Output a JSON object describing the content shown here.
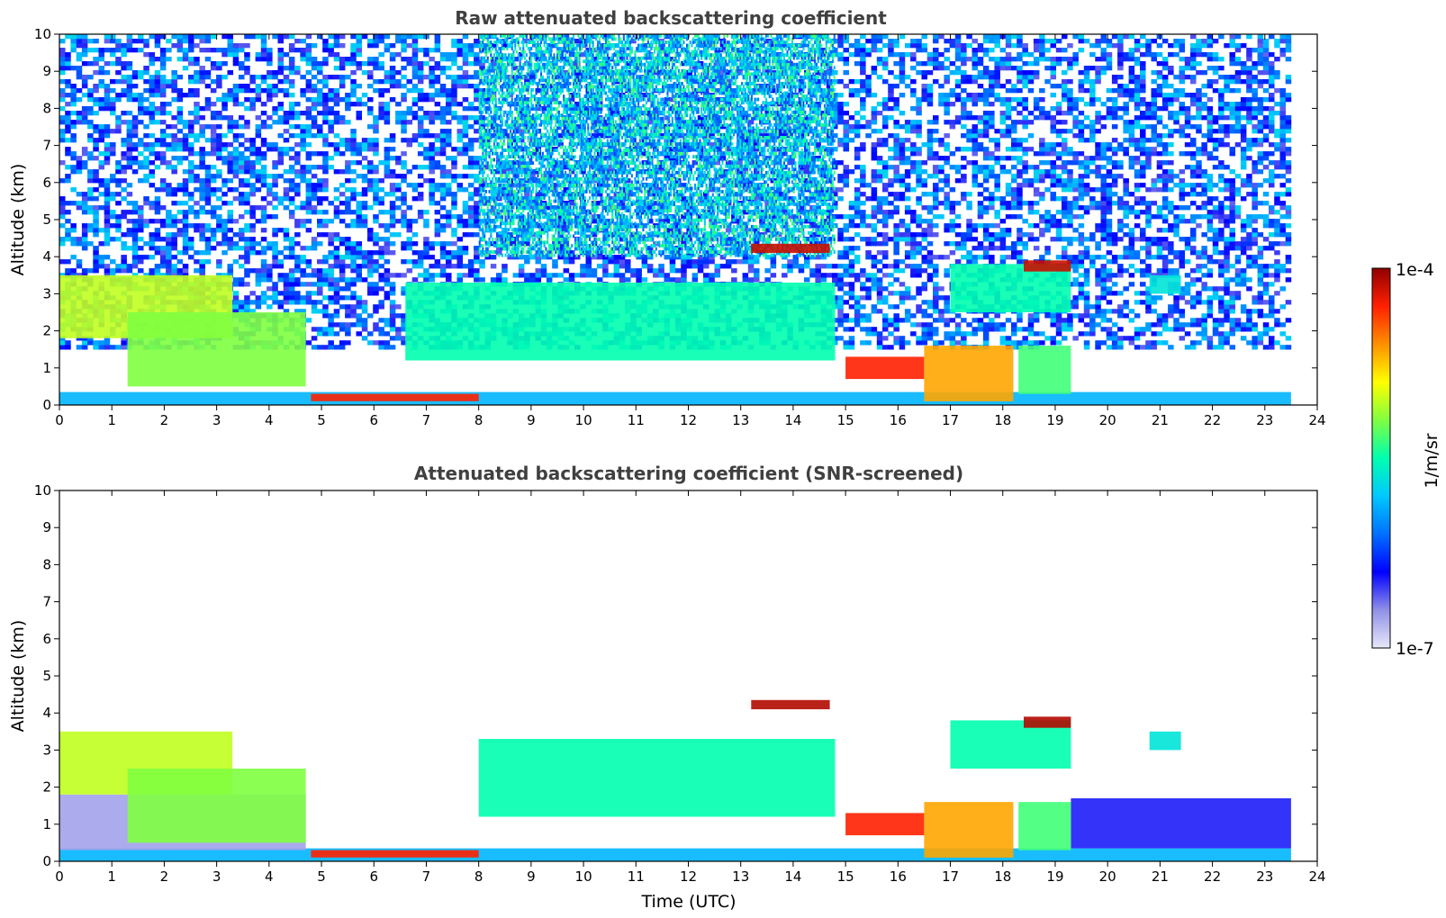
{
  "colors": {
    "colormap": [
      "#e8e8f8",
      "#9090e8",
      "#0000ff",
      "#0070ff",
      "#00c8ff",
      "#00ffb0",
      "#80ff40",
      "#ffff00",
      "#ff9000",
      "#ff2000",
      "#900000"
    ],
    "background": "#ffffff",
    "title_text": "#404040"
  },
  "chart_data": [
    {
      "type": "heatmap",
      "title": "Raw attenuated backscattering coefficient",
      "xlabel": "",
      "ylabel": "Altitude (km)",
      "xlim": [
        0,
        24
      ],
      "ylim": [
        0,
        10
      ],
      "xticks": [
        0,
        1,
        2,
        3,
        4,
        5,
        6,
        7,
        8,
        9,
        10,
        11,
        12,
        13,
        14,
        15,
        16,
        17,
        18,
        19,
        20,
        21,
        22,
        23,
        24
      ],
      "yticks": [
        0,
        1,
        2,
        3,
        4,
        5,
        6,
        7,
        8,
        9,
        10
      ],
      "data_extent_x": [
        0,
        23.5
      ],
      "features": [
        {
          "kind": "noise",
          "x": [
            0,
            23.5
          ],
          "y": [
            1.5,
            10
          ],
          "level": 0.28
        },
        {
          "kind": "noise",
          "x": [
            8,
            14.8
          ],
          "y": [
            4,
            10
          ],
          "level": 0.42
        },
        {
          "kind": "layer",
          "x": [
            0,
            23.5
          ],
          "y": [
            0,
            0.35
          ],
          "level": 0.38
        },
        {
          "kind": "layer",
          "x": [
            4.8,
            8
          ],
          "y": [
            0.1,
            0.3
          ],
          "level": 0.9
        },
        {
          "kind": "layer",
          "x": [
            0,
            3.3
          ],
          "y": [
            1.8,
            3.5
          ],
          "level": 0.65
        },
        {
          "kind": "layer",
          "x": [
            1.3,
            4.7
          ],
          "y": [
            0.5,
            2.5
          ],
          "level": 0.6
        },
        {
          "kind": "layer",
          "x": [
            6.6,
            14.8
          ],
          "y": [
            1.2,
            3.3
          ],
          "level": 0.5
        },
        {
          "kind": "layer",
          "x": [
            13.2,
            14.7
          ],
          "y": [
            4.1,
            4.35
          ],
          "level": 0.95
        },
        {
          "kind": "layer",
          "x": [
            15,
            16.5
          ],
          "y": [
            0.7,
            1.3
          ],
          "level": 0.9
        },
        {
          "kind": "layer",
          "x": [
            16.5,
            18.2
          ],
          "y": [
            0.1,
            1.6
          ],
          "level": 0.78
        },
        {
          "kind": "layer",
          "x": [
            18.3,
            19.3
          ],
          "y": [
            0.3,
            1.6
          ],
          "level": 0.55
        },
        {
          "kind": "layer",
          "x": [
            17,
            19.3
          ],
          "y": [
            2.5,
            3.8
          ],
          "level": 0.5
        },
        {
          "kind": "layer",
          "x": [
            18.4,
            19.3
          ],
          "y": [
            3.6,
            3.9
          ],
          "level": 0.95
        },
        {
          "kind": "layer",
          "x": [
            20.8,
            21.4
          ],
          "y": [
            3,
            3.5
          ],
          "level": 0.45
        }
      ]
    },
    {
      "type": "heatmap",
      "title": "Attenuated backscattering coefficient (SNR-screened)",
      "xlabel": "Time (UTC)",
      "ylabel": "Altitude (km)",
      "xlim": [
        0,
        24
      ],
      "ylim": [
        0,
        10
      ],
      "xticks": [
        0,
        1,
        2,
        3,
        4,
        5,
        6,
        7,
        8,
        9,
        10,
        11,
        12,
        13,
        14,
        15,
        16,
        17,
        18,
        19,
        20,
        21,
        22,
        23,
        24
      ],
      "yticks": [
        0,
        1,
        2,
        3,
        4,
        5,
        6,
        7,
        8,
        9,
        10
      ],
      "data_extent_x": [
        0,
        23.5
      ],
      "features": [
        {
          "kind": "layer",
          "x": [
            0,
            23.5
          ],
          "y": [
            0,
            0.35
          ],
          "level": 0.38
        },
        {
          "kind": "layer",
          "x": [
            0,
            4.7
          ],
          "y": [
            0.3,
            1.8
          ],
          "level": 0.08
        },
        {
          "kind": "layer",
          "x": [
            19.3,
            23.5
          ],
          "y": [
            0.35,
            1.7
          ],
          "level": 0.18
        },
        {
          "kind": "layer",
          "x": [
            4.8,
            8
          ],
          "y": [
            0.1,
            0.3
          ],
          "level": 0.9
        },
        {
          "kind": "layer",
          "x": [
            0,
            3.3
          ],
          "y": [
            1.8,
            3.5
          ],
          "level": 0.65
        },
        {
          "kind": "layer",
          "x": [
            1.3,
            4.7
          ],
          "y": [
            0.5,
            2.5
          ],
          "level": 0.6
        },
        {
          "kind": "layer",
          "x": [
            8,
            14.8
          ],
          "y": [
            1.2,
            3.3
          ],
          "level": 0.5
        },
        {
          "kind": "layer",
          "x": [
            13.2,
            14.7
          ],
          "y": [
            4.1,
            4.35
          ],
          "level": 0.97
        },
        {
          "kind": "layer",
          "x": [
            15,
            16.5
          ],
          "y": [
            0.7,
            1.3
          ],
          "level": 0.9
        },
        {
          "kind": "layer",
          "x": [
            16.5,
            18.2
          ],
          "y": [
            0.1,
            1.6
          ],
          "level": 0.78
        },
        {
          "kind": "layer",
          "x": [
            18.3,
            19.3
          ],
          "y": [
            0.3,
            1.6
          ],
          "level": 0.55
        },
        {
          "kind": "layer",
          "x": [
            17,
            19.3
          ],
          "y": [
            2.5,
            3.8
          ],
          "level": 0.5
        },
        {
          "kind": "layer",
          "x": [
            18.4,
            19.3
          ],
          "y": [
            3.6,
            3.9
          ],
          "level": 0.97
        },
        {
          "kind": "layer",
          "x": [
            20.8,
            21.4
          ],
          "y": [
            3,
            3.5
          ],
          "level": 0.45
        }
      ]
    }
  ],
  "colorbar": {
    "label": "1/m/sr",
    "max_label": "1e-4",
    "min_label": "1e-7",
    "scale": "log",
    "range": [
      1e-07,
      0.0001
    ]
  }
}
